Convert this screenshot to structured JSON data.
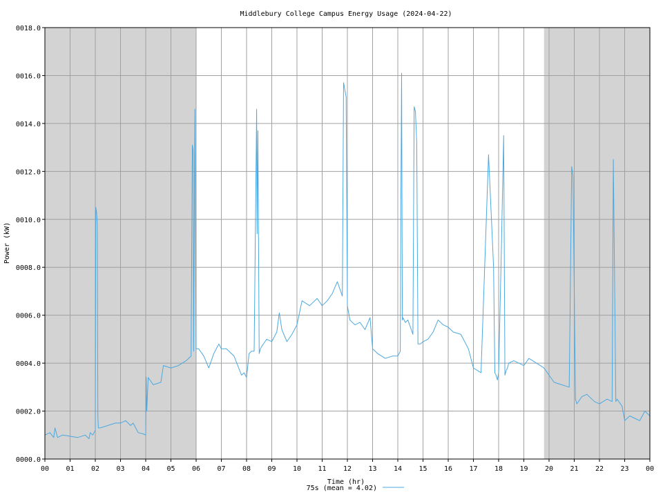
{
  "chart_data": {
    "type": "line",
    "title": "Middlebury College Campus Energy Usage (2024-04-22)",
    "xlabel": "Time (hr)",
    "ylabel": "Power (kW)",
    "xlim": [
      0,
      24
    ],
    "ylim": [
      0,
      18
    ],
    "x_ticks": [
      "00",
      "01",
      "02",
      "03",
      "04",
      "05",
      "06",
      "07",
      "08",
      "09",
      "10",
      "11",
      "12",
      "13",
      "14",
      "15",
      "16",
      "17",
      "18",
      "19",
      "20",
      "21",
      "22",
      "23",
      "00"
    ],
    "y_ticks": [
      "0000.0",
      "0002.0",
      "0004.0",
      "0006.0",
      "0008.0",
      "0010.0",
      "0012.0",
      "0014.0",
      "0016.0",
      "0018.0"
    ],
    "grid": true,
    "shaded_hours": [
      [
        0,
        6
      ],
      [
        19.8,
        24
      ]
    ],
    "legend": {
      "position": "bottom-center",
      "label": "75s (mean = 4.02)"
    },
    "series": [
      {
        "name": "75s (mean = 4.02)",
        "color": "#4aa8e0",
        "x": [
          0,
          0.2,
          0.35,
          0.4,
          0.5,
          0.7,
          1.0,
          1.3,
          1.6,
          1.75,
          1.8,
          1.9,
          2.0,
          2.02,
          2.05,
          2.08,
          2.1,
          2.12,
          2.2,
          2.5,
          2.8,
          3.0,
          3.2,
          3.4,
          3.5,
          3.7,
          3.9,
          4.0,
          4.02,
          4.04,
          4.1,
          4.3,
          4.6,
          4.7,
          5.0,
          5.3,
          5.6,
          5.8,
          5.85,
          5.88,
          5.9,
          5.95,
          6.0,
          6.1,
          6.3,
          6.5,
          6.7,
          6.9,
          7.0,
          7.2,
          7.5,
          7.8,
          7.9,
          8.0,
          8.1,
          8.2,
          8.3,
          8.4,
          8.42,
          8.45,
          8.5,
          8.55,
          8.6,
          8.8,
          9.0,
          9.2,
          9.3,
          9.4,
          9.6,
          9.8,
          10.0,
          10.2,
          10.5,
          10.8,
          11.0,
          11.2,
          11.4,
          11.6,
          11.8,
          11.85,
          11.9,
          11.95,
          12.0,
          12.1,
          12.3,
          12.5,
          12.7,
          12.9,
          13.0,
          13.2,
          13.5,
          13.8,
          14.0,
          14.1,
          14.12,
          14.15,
          14.18,
          14.2,
          14.3,
          14.4,
          14.5,
          14.6,
          14.65,
          14.7,
          14.75,
          14.8,
          14.9,
          15.0,
          15.2,
          15.4,
          15.6,
          15.8,
          16.0,
          16.2,
          16.5,
          16.8,
          17.0,
          17.3,
          17.6,
          17.8,
          17.85,
          17.9,
          17.95,
          18.0,
          18.1,
          18.2,
          18.25,
          18.3,
          18.35,
          18.4,
          18.6,
          18.8,
          19.0,
          19.2,
          19.5,
          19.8,
          20.0,
          20.2,
          20.5,
          20.8,
          20.9,
          20.95,
          21.0,
          21.05,
          21.1,
          21.3,
          21.5,
          21.8,
          22.0,
          22.3,
          22.5,
          22.55,
          22.6,
          22.65,
          22.7,
          22.9,
          23.0,
          23.2,
          23.4,
          23.6,
          23.8,
          24.0
        ],
        "y": [
          1.0,
          1.1,
          0.9,
          1.3,
          0.9,
          1.0,
          0.95,
          0.9,
          1.0,
          0.85,
          1.1,
          1.0,
          1.2,
          10.5,
          10.3,
          9.8,
          1.8,
          1.3,
          1.3,
          1.4,
          1.5,
          1.5,
          1.6,
          1.4,
          1.5,
          1.1,
          1.05,
          1.0,
          3.4,
          2.0,
          3.4,
          3.1,
          3.2,
          3.9,
          3.8,
          3.9,
          4.1,
          4.3,
          13.1,
          12.9,
          4.5,
          14.6,
          4.6,
          4.6,
          4.3,
          3.8,
          4.4,
          4.8,
          4.6,
          4.6,
          4.3,
          3.5,
          3.6,
          3.4,
          4.4,
          4.5,
          4.5,
          14.6,
          9.4,
          13.7,
          4.4,
          4.6,
          4.7,
          5.0,
          4.9,
          5.3,
          6.1,
          5.4,
          4.9,
          5.2,
          5.6,
          6.6,
          6.4,
          6.7,
          6.4,
          6.6,
          6.9,
          7.4,
          6.8,
          15.7,
          15.4,
          15.1,
          6.4,
          5.8,
          5.6,
          5.7,
          5.4,
          5.9,
          4.6,
          4.4,
          4.2,
          4.3,
          4.3,
          4.5,
          10.5,
          16.1,
          5.8,
          5.9,
          5.7,
          5.8,
          5.5,
          5.2,
          14.7,
          14.5,
          13.2,
          4.8,
          4.8,
          4.9,
          5.0,
          5.3,
          5.8,
          5.6,
          5.5,
          5.3,
          5.2,
          4.6,
          3.8,
          3.6,
          12.7,
          8.0,
          3.6,
          3.5,
          3.3,
          3.6,
          8.4,
          13.5,
          3.5,
          3.7,
          3.8,
          4.0,
          4.1,
          4.0,
          3.9,
          4.2,
          4.0,
          3.8,
          3.5,
          3.2,
          3.1,
          3.0,
          12.2,
          11.8,
          7.0,
          2.5,
          2.3,
          2.6,
          2.7,
          2.4,
          2.3,
          2.5,
          2.4,
          12.5,
          7.5,
          2.4,
          2.5,
          2.2,
          1.6,
          1.8,
          1.7,
          1.6,
          2.0,
          1.8
        ]
      }
    ]
  }
}
